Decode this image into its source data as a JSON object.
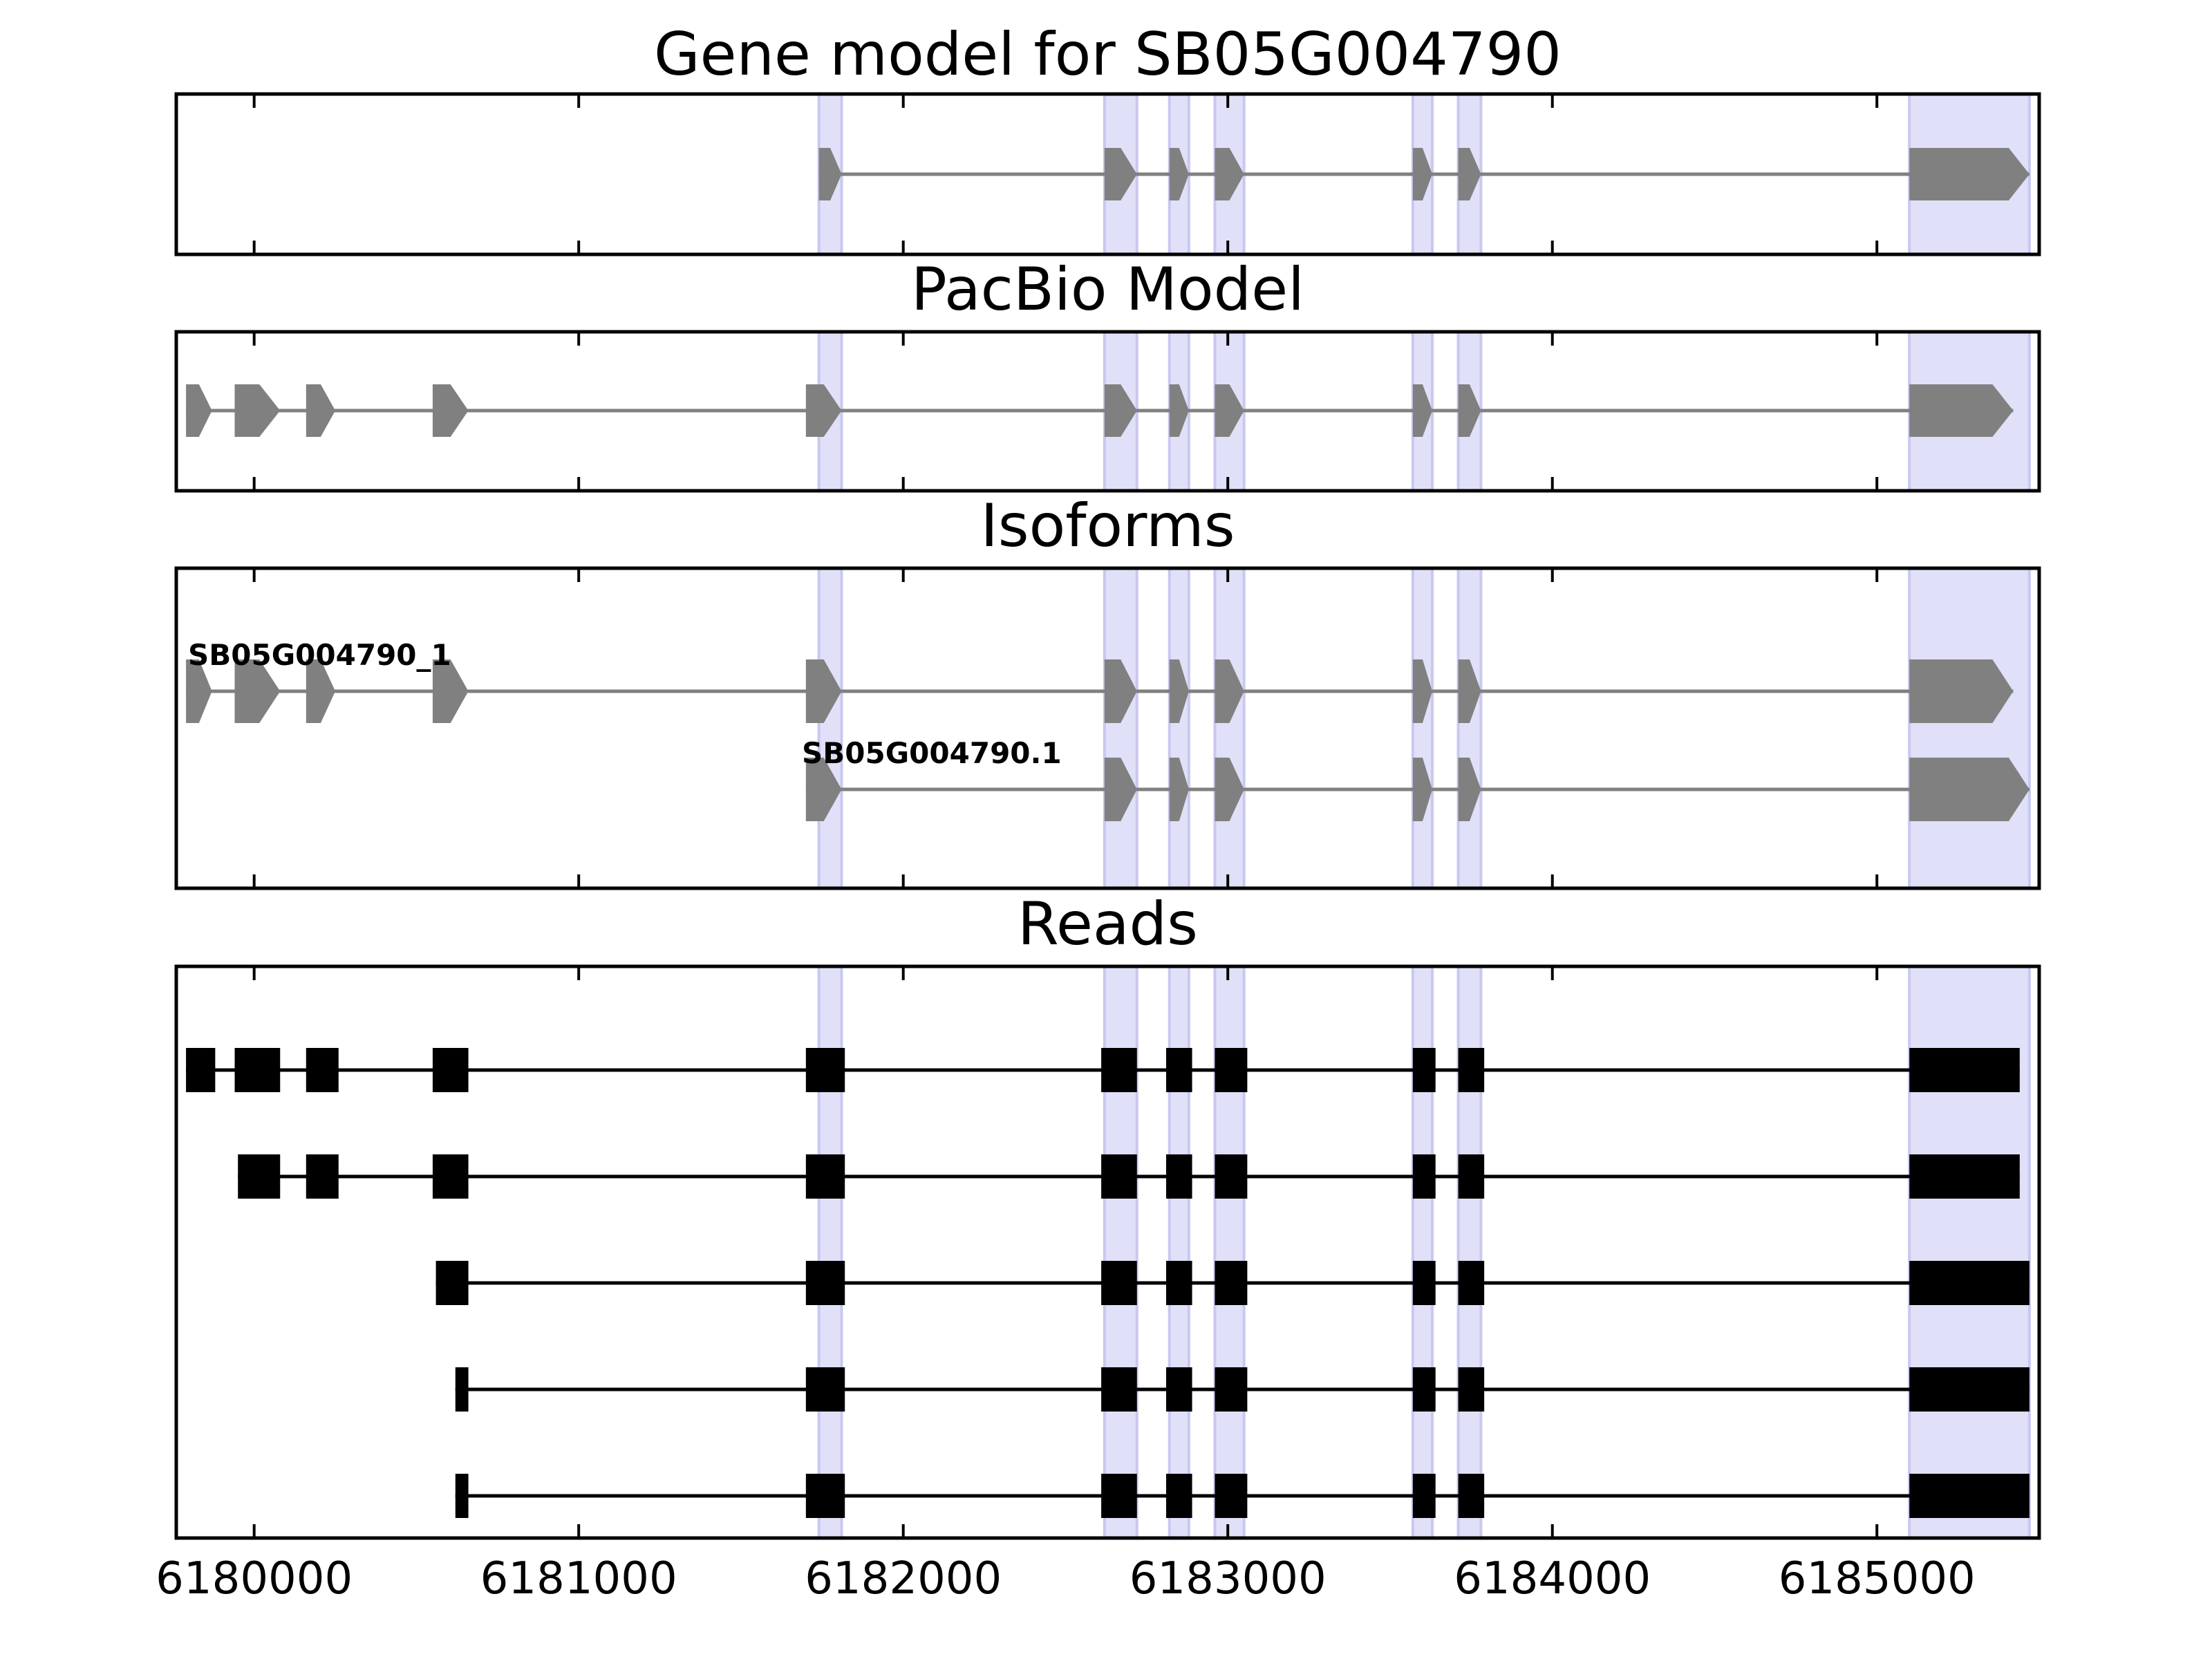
{
  "chart_data": {
    "type": "gene-structure",
    "x_domain": [
      6179760,
      6185500
    ],
    "x_ticks": [
      6180000,
      6181000,
      6182000,
      6183000,
      6184000,
      6185000
    ],
    "x_tick_labels": [
      "6180000",
      "6181000",
      "6182000",
      "6183000",
      "6184000",
      "6185000"
    ],
    "colors": {
      "exon_model": "#808080",
      "exon_read": "#000000",
      "intron_model": "#808080",
      "intron_read": "#000000",
      "highlight": "#e0e0f8",
      "highlight_edge": "#c8c8f0"
    },
    "highlight_regions": [
      [
        6181740,
        6181810
      ],
      [
        6182620,
        6182720
      ],
      [
        6182820,
        6182880
      ],
      [
        6182960,
        6183050
      ],
      [
        6183570,
        6183630
      ],
      [
        6183710,
        6183780
      ],
      [
        6185100,
        6185470
      ]
    ],
    "panels": [
      {
        "title": "Gene model for SB05G004790",
        "kind": "model",
        "tracks": [
          {
            "label": "",
            "exons": [
              [
                6181740,
                6181810
              ],
              [
                6182620,
                6182720
              ],
              [
                6182820,
                6182880
              ],
              [
                6182960,
                6183050
              ],
              [
                6183570,
                6183630
              ],
              [
                6183710,
                6183780
              ],
              [
                6185100,
                6185470
              ]
            ]
          }
        ]
      },
      {
        "title": "PacBio Model",
        "kind": "model",
        "tracks": [
          {
            "label": "",
            "exons": [
              [
                6179790,
                6179870
              ],
              [
                6179940,
                6180080
              ],
              [
                6180160,
                6180250
              ],
              [
                6180550,
                6180660
              ],
              [
                6181700,
                6181810
              ],
              [
                6182620,
                6182720
              ],
              [
                6182820,
                6182880
              ],
              [
                6182960,
                6183050
              ],
              [
                6183570,
                6183630
              ],
              [
                6183710,
                6183780
              ],
              [
                6185100,
                6185420
              ]
            ]
          }
        ]
      },
      {
        "title": "Isoforms",
        "kind": "model",
        "tracks": [
          {
            "label": "SB05G004790_1",
            "exons": [
              [
                6179790,
                6179870
              ],
              [
                6179940,
                6180080
              ],
              [
                6180160,
                6180250
              ],
              [
                6180550,
                6180660
              ],
              [
                6181700,
                6181810
              ],
              [
                6182620,
                6182720
              ],
              [
                6182820,
                6182880
              ],
              [
                6182960,
                6183050
              ],
              [
                6183570,
                6183630
              ],
              [
                6183710,
                6183780
              ],
              [
                6185100,
                6185420
              ]
            ]
          },
          {
            "label": "SB05G004790.1",
            "exons": [
              [
                6181700,
                6181810
              ],
              [
                6182620,
                6182720
              ],
              [
                6182820,
                6182880
              ],
              [
                6182960,
                6183050
              ],
              [
                6183570,
                6183630
              ],
              [
                6183710,
                6183780
              ],
              [
                6185100,
                6185470
              ]
            ]
          }
        ]
      },
      {
        "title": "Reads",
        "kind": "reads",
        "tracks": [
          {
            "label": "",
            "exons": [
              [
                6179790,
                6179880
              ],
              [
                6179940,
                6180080
              ],
              [
                6180160,
                6180260
              ],
              [
                6180550,
                6180660
              ],
              [
                6181700,
                6181820
              ],
              [
                6182610,
                6182720
              ],
              [
                6182810,
                6182890
              ],
              [
                6182960,
                6183060
              ],
              [
                6183570,
                6183640
              ],
              [
                6183710,
                6183790
              ],
              [
                6185100,
                6185440
              ]
            ]
          },
          {
            "label": "",
            "exons": [
              [
                6179950,
                6180080
              ],
              [
                6180160,
                6180260
              ],
              [
                6180550,
                6180660
              ],
              [
                6181700,
                6181820
              ],
              [
                6182610,
                6182720
              ],
              [
                6182810,
                6182890
              ],
              [
                6182960,
                6183060
              ],
              [
                6183570,
                6183640
              ],
              [
                6183710,
                6183790
              ],
              [
                6185100,
                6185440
              ]
            ]
          },
          {
            "label": "",
            "exons": [
              [
                6180560,
                6180660
              ],
              [
                6181700,
                6181820
              ],
              [
                6182610,
                6182720
              ],
              [
                6182810,
                6182890
              ],
              [
                6182960,
                6183060
              ],
              [
                6183570,
                6183640
              ],
              [
                6183710,
                6183790
              ],
              [
                6185100,
                6185470
              ]
            ]
          },
          {
            "label": "",
            "exons": [
              [
                6180620,
                6180660
              ],
              [
                6181700,
                6181820
              ],
              [
                6182610,
                6182720
              ],
              [
                6182810,
                6182890
              ],
              [
                6182960,
                6183060
              ],
              [
                6183570,
                6183640
              ],
              [
                6183710,
                6183790
              ],
              [
                6185100,
                6185470
              ]
            ]
          },
          {
            "label": "",
            "exons": [
              [
                6180620,
                6180660
              ],
              [
                6181700,
                6181820
              ],
              [
                6182610,
                6182720
              ],
              [
                6182810,
                6182890
              ],
              [
                6182960,
                6183060
              ],
              [
                6183570,
                6183640
              ],
              [
                6183710,
                6183790
              ],
              [
                6185100,
                6185470
              ]
            ]
          }
        ]
      }
    ]
  }
}
